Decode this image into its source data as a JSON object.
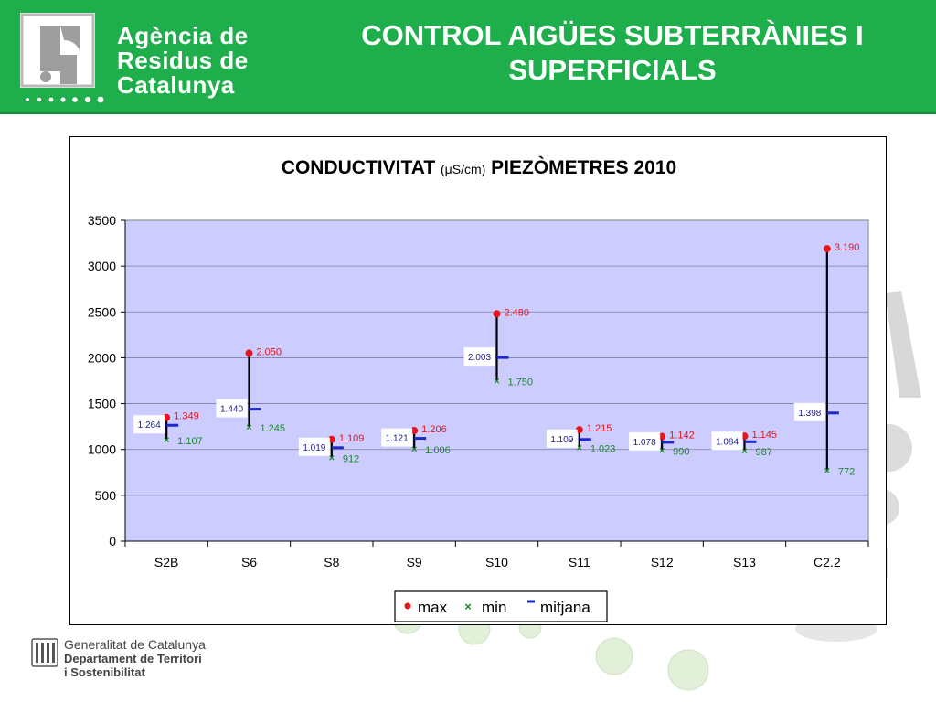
{
  "header": {
    "agency_lines": [
      "Agència de",
      "Residus de",
      "Catalunya"
    ],
    "title_lines": [
      "CONTROL AIGÜES SUBTERRÀNIES I",
      "SUPERFICIALS"
    ]
  },
  "footer": {
    "lines": [
      "Generalitat de Catalunya",
      "Departament de Territori",
      "i Sostenibilitat"
    ]
  },
  "colors": {
    "header_green": "#1fae4c",
    "plot_bg": "#ccccff",
    "max": "#e8141b",
    "min": "#1a8a2a",
    "mitjana": "#1c28c8"
  },
  "chart_data": {
    "type": "hi-lo-close",
    "title_parts": [
      "CONDUCTIVITAT ",
      "(",
      "μ",
      "S/cm)",
      " PIEZÒMETRES 2010"
    ],
    "categories": [
      "S2B",
      "S6",
      "S8",
      "S9",
      "S10",
      "S11",
      "S12",
      "S13",
      "C2.2"
    ],
    "ylim": [
      0,
      3500
    ],
    "yticks": [
      "0",
      "500",
      "1000",
      "1500",
      "2000",
      "2500",
      "3000",
      "3500"
    ],
    "grid": true,
    "legend_position": "bottom",
    "series": [
      {
        "name": "max",
        "marker": "circle",
        "values": [
          1349,
          2050,
          1109,
          1206,
          2480,
          1215,
          1142,
          1145,
          3190
        ],
        "labels": [
          "1.349",
          "2.050",
          "1.109",
          "1.206",
          "2.480",
          "1.215",
          "1.142",
          "1.145",
          "3.190"
        ]
      },
      {
        "name": "min",
        "marker": "x",
        "values": [
          1107,
          1245,
          912,
          1006,
          1750,
          1023,
          990,
          987,
          772
        ],
        "labels": [
          "1.107",
          "1.245",
          "912",
          "1.006",
          "1.750",
          "1.023",
          "990",
          "987",
          "772"
        ]
      },
      {
        "name": "mitjana",
        "marker": "dash",
        "values": [
          1264,
          1440,
          1019,
          1121,
          2003,
          1109,
          1078,
          1084,
          1398
        ],
        "labels": [
          "1.264",
          "1.440",
          "1.019",
          "1.121",
          "2.003",
          "1.109",
          "1.078",
          "1.084",
          "1.398"
        ]
      }
    ]
  }
}
